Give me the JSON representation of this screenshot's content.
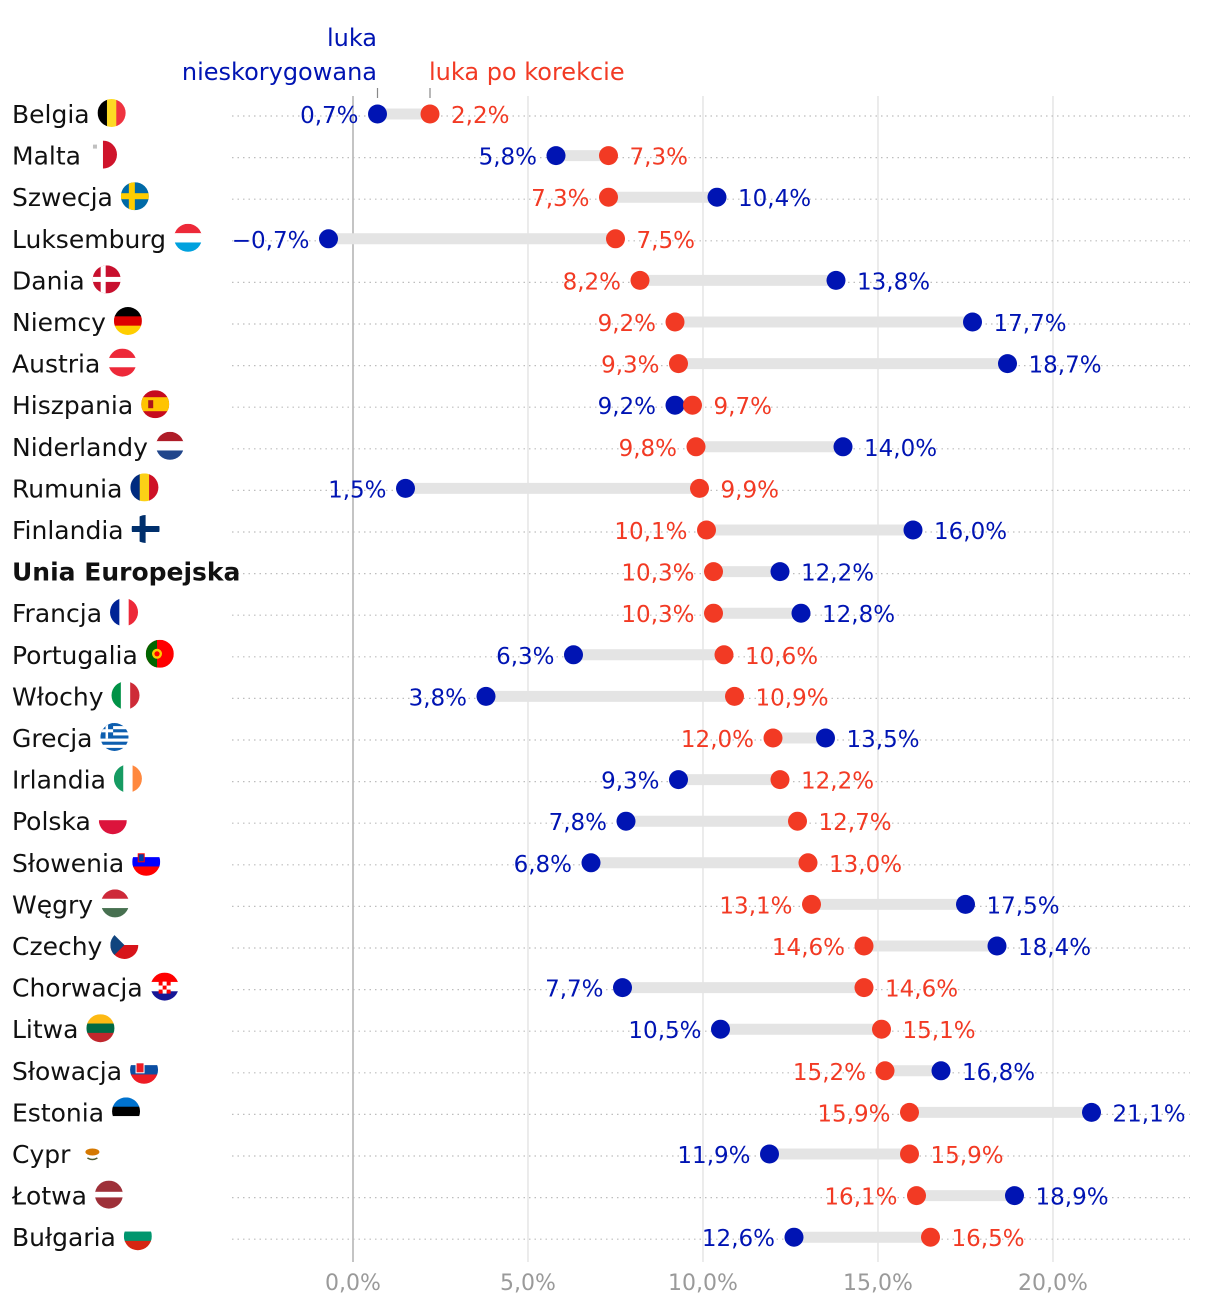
{
  "colors": {
    "unadjusted": "#0014b3",
    "adjusted": "#f23a24",
    "bar": "#e4e4e4",
    "grid": "#dedede",
    "zero": "#b5b5b5",
    "rowline": "#bdbdbd"
  },
  "chart_data": {
    "type": "dumbbell",
    "title": "",
    "xlabel": "",
    "ylabel": "",
    "xlim": [
      -3.5,
      24
    ],
    "xticks": [
      0,
      5,
      10,
      15,
      20
    ],
    "xtick_labels": [
      "0,0%",
      "5,0%",
      "10,0%",
      "15,0%",
      "20,0%"
    ],
    "legend": {
      "unadjusted_line1": "luka",
      "unadjusted_line2": "nieskorygowana",
      "adjusted": "luka po korekcie"
    },
    "series": [
      {
        "name": "luka nieskorygowana",
        "key": "unadjusted"
      },
      {
        "name": "luka po korekcie",
        "key": "adjusted"
      }
    ],
    "rows": [
      {
        "country": "Belgia",
        "flag": "be",
        "unadjusted": 0.7,
        "unadjusted_label": "0,7%",
        "adjusted": 2.2,
        "adjusted_label": "2,2%"
      },
      {
        "country": "Malta",
        "flag": "mt",
        "unadjusted": 5.8,
        "unadjusted_label": "5,8%",
        "adjusted": 7.3,
        "adjusted_label": "7,3%"
      },
      {
        "country": "Szwecja",
        "flag": "se",
        "unadjusted": 10.4,
        "unadjusted_label": "10,4%",
        "adjusted": 7.3,
        "adjusted_label": "7,3%"
      },
      {
        "country": "Luksemburg",
        "flag": "lu",
        "unadjusted": -0.7,
        "unadjusted_label": "−0,7%",
        "adjusted": 7.5,
        "adjusted_label": "7,5%"
      },
      {
        "country": "Dania",
        "flag": "dk",
        "unadjusted": 13.8,
        "unadjusted_label": "13,8%",
        "adjusted": 8.2,
        "adjusted_label": "8,2%"
      },
      {
        "country": "Niemcy",
        "flag": "de",
        "unadjusted": 17.7,
        "unadjusted_label": "17,7%",
        "adjusted": 9.2,
        "adjusted_label": "9,2%"
      },
      {
        "country": "Austria",
        "flag": "at",
        "unadjusted": 18.7,
        "unadjusted_label": "18,7%",
        "adjusted": 9.3,
        "adjusted_label": "9,3%"
      },
      {
        "country": "Hiszpania",
        "flag": "es",
        "unadjusted": 9.2,
        "unadjusted_label": "9,2%",
        "adjusted": 9.7,
        "adjusted_label": "9,7%"
      },
      {
        "country": "Niderlandy",
        "flag": "nl",
        "unadjusted": 14.0,
        "unadjusted_label": "14,0%",
        "adjusted": 9.8,
        "adjusted_label": "9,8%"
      },
      {
        "country": "Rumunia",
        "flag": "ro",
        "unadjusted": 1.5,
        "unadjusted_label": "1,5%",
        "adjusted": 9.9,
        "adjusted_label": "9,9%"
      },
      {
        "country": "Finlandia",
        "flag": "fi",
        "unadjusted": 16.0,
        "unadjusted_label": "16,0%",
        "adjusted": 10.1,
        "adjusted_label": "10,1%"
      },
      {
        "country": "Unia Europejska",
        "flag": "",
        "bold": true,
        "unadjusted": 12.2,
        "unadjusted_label": "12,2%",
        "adjusted": 10.3,
        "adjusted_label": "10,3%"
      },
      {
        "country": "Francja",
        "flag": "fr",
        "unadjusted": 12.8,
        "unadjusted_label": "12,8%",
        "adjusted": 10.3,
        "adjusted_label": "10,3%"
      },
      {
        "country": "Portugalia",
        "flag": "pt",
        "unadjusted": 6.3,
        "unadjusted_label": "6,3%",
        "adjusted": 10.6,
        "adjusted_label": "10,6%"
      },
      {
        "country": "Włochy",
        "flag": "it",
        "unadjusted": 3.8,
        "unadjusted_label": "3,8%",
        "adjusted": 10.9,
        "adjusted_label": "10,9%"
      },
      {
        "country": "Grecja",
        "flag": "gr",
        "unadjusted": 13.5,
        "unadjusted_label": "13,5%",
        "adjusted": 12.0,
        "adjusted_label": "12,0%"
      },
      {
        "country": "Irlandia",
        "flag": "ie",
        "unadjusted": 9.3,
        "unadjusted_label": "9,3%",
        "adjusted": 12.2,
        "adjusted_label": "12,2%"
      },
      {
        "country": "Polska",
        "flag": "pl",
        "unadjusted": 7.8,
        "unadjusted_label": "7,8%",
        "adjusted": 12.7,
        "adjusted_label": "12,7%"
      },
      {
        "country": "Słowenia",
        "flag": "si",
        "unadjusted": 6.8,
        "unadjusted_label": "6,8%",
        "adjusted": 13.0,
        "adjusted_label": "13,0%"
      },
      {
        "country": "Węgry",
        "flag": "hu",
        "unadjusted": 17.5,
        "unadjusted_label": "17,5%",
        "adjusted": 13.1,
        "adjusted_label": "13,1%"
      },
      {
        "country": "Czechy",
        "flag": "cz",
        "unadjusted": 18.4,
        "unadjusted_label": "18,4%",
        "adjusted": 14.6,
        "adjusted_label": "14,6%"
      },
      {
        "country": "Chorwacja",
        "flag": "hr",
        "unadjusted": 7.7,
        "unadjusted_label": "7,7%",
        "adjusted": 14.6,
        "adjusted_label": "14,6%"
      },
      {
        "country": "Litwa",
        "flag": "lt",
        "unadjusted": 10.5,
        "unadjusted_label": "10,5%",
        "adjusted": 15.1,
        "adjusted_label": "15,1%"
      },
      {
        "country": "Słowacja",
        "flag": "sk",
        "unadjusted": 16.8,
        "unadjusted_label": "16,8%",
        "adjusted": 15.2,
        "adjusted_label": "15,2%"
      },
      {
        "country": "Estonia",
        "flag": "ee",
        "unadjusted": 21.1,
        "unadjusted_label": "21,1%",
        "adjusted": 15.9,
        "adjusted_label": "15,9%"
      },
      {
        "country": "Cypr",
        "flag": "cy",
        "unadjusted": 11.9,
        "unadjusted_label": "11,9%",
        "adjusted": 15.9,
        "adjusted_label": "15,9%"
      },
      {
        "country": "Łotwa",
        "flag": "lv",
        "unadjusted": 18.9,
        "unadjusted_label": "18,9%",
        "adjusted": 16.1,
        "adjusted_label": "16,1%"
      },
      {
        "country": "Bułgaria",
        "flag": "bg",
        "unadjusted": 12.6,
        "unadjusted_label": "12,6%",
        "adjusted": 16.5,
        "adjusted_label": "16,5%"
      }
    ]
  }
}
